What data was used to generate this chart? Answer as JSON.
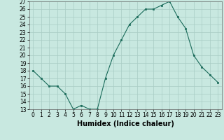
{
  "x": [
    0,
    1,
    2,
    3,
    4,
    5,
    6,
    7,
    8,
    9,
    10,
    11,
    12,
    13,
    14,
    15,
    16,
    17,
    18,
    19,
    20,
    21,
    22,
    23
  ],
  "y": [
    18,
    17,
    16,
    16,
    15,
    13,
    13.5,
    13,
    13,
    17,
    20,
    22,
    24,
    25,
    26,
    26,
    26.5,
    27,
    25,
    23.5,
    20,
    18.5,
    17.5,
    16.5
  ],
  "line_color": "#1a6b5a",
  "marker_color": "#1a6b5a",
  "bg_color": "#c8e8e0",
  "grid_color": "#a8ccc4",
  "xlabel": "Humidex (Indice chaleur)",
  "ylim": [
    13,
    27
  ],
  "xlim_min": -0.5,
  "xlim_max": 23.5,
  "yticks": [
    13,
    14,
    15,
    16,
    17,
    18,
    19,
    20,
    21,
    22,
    23,
    24,
    25,
    26,
    27
  ],
  "xticks": [
    0,
    1,
    2,
    3,
    4,
    5,
    6,
    7,
    8,
    9,
    10,
    11,
    12,
    13,
    14,
    15,
    16,
    17,
    18,
    19,
    20,
    21,
    22,
    23
  ],
  "xtick_labels": [
    "0",
    "1",
    "2",
    "3",
    "4",
    "5",
    "6",
    "7",
    "8",
    "9",
    "10",
    "11",
    "12",
    "13",
    "14",
    "15",
    "16",
    "17",
    "18",
    "19",
    "20",
    "21",
    "22",
    "23"
  ],
  "xlabel_fontsize": 7,
  "tick_fontsize": 5.5
}
